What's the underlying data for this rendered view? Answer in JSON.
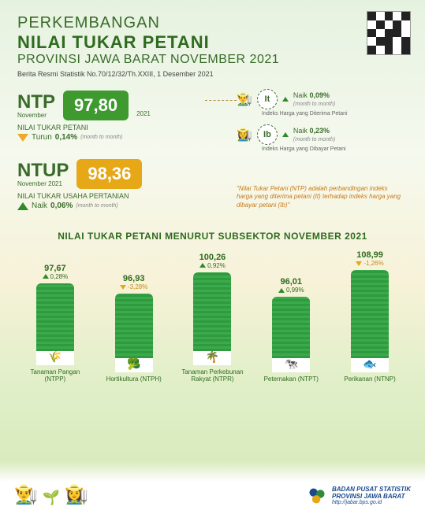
{
  "header": {
    "title_line1": "PERKEMBANGAN",
    "title_line2": "NILAI TUKAR PETANI",
    "title_line3": "PROVINSI JAWA BARAT NOVEMBER 2021",
    "subtitle": "Berita Resmi Statistik No.70/12/32/Th.XXIII, 1 Desember 2021"
  },
  "ntp": {
    "label": "NTP",
    "sublabel": "November",
    "value": "97,80",
    "year": "2021",
    "desc": "NILAI TUKAR PETANI",
    "direction": "down",
    "change_label": "Turun",
    "change_value": "0,14%",
    "mtm": "(month to month)",
    "badge_color": "#3e9a2f"
  },
  "indices": {
    "it": {
      "symbol": "It",
      "direction": "up",
      "change_label": "Naik",
      "change_value": "0,09%",
      "mtm": "(month to month)",
      "desc": "Indeks Harga yang Diterima Petani"
    },
    "ib": {
      "symbol": "Ib",
      "direction": "up",
      "change_label": "Naik",
      "change_value": "0,23%",
      "mtm": "(month to month)",
      "desc": "Indeks Harga yang Dibayar Petani"
    }
  },
  "ntup": {
    "label": "NTUP",
    "sublabel": "November 2021",
    "value": "98,36",
    "desc": "NILAI TUKAR USAHA PERTANIAN",
    "direction": "up",
    "change_label": "Naik",
    "change_value": "0,06%",
    "mtm": "(month to month)",
    "badge_color": "#e6a817"
  },
  "quote": "\"Nilai Tukar Petani (NTP) adalah perbandingan indeks harga yang diterima petani (It) terhadap indeks harga yang dibayar petani (Ib)\"",
  "subsector": {
    "title": "NILAI TUKAR PETANI MENURUT SUBSEKTOR NOVEMBER 2021",
    "bars": [
      {
        "value": "97,67",
        "change": "0,28%",
        "dir": "up",
        "height": 104,
        "icon": "🌾",
        "label": "Tanaman Pangan (NTPP)"
      },
      {
        "value": "96,93",
        "change": "-3,28%",
        "dir": "down",
        "height": 100,
        "icon": "🥦",
        "label": "Hortikultura (NTPH)"
      },
      {
        "value": "100,26",
        "change": "0,92%",
        "dir": "up",
        "height": 118,
        "icon": "🌴",
        "label": "Tanaman Perkebunan Rakyat (NTPR)"
      },
      {
        "value": "96,01",
        "change": "0,99%",
        "dir": "up",
        "height": 96,
        "icon": "🐄",
        "label": "Peternakan (NTPT)"
      },
      {
        "value": "108,99",
        "change": "-1,26%",
        "dir": "down",
        "height": 130,
        "icon": "🐟",
        "label": "Perikanan (NTNP)"
      }
    ],
    "bar_color": "#2f9a3f"
  },
  "footer": {
    "org_line1": "BADAN PUSAT STATISTIK",
    "org_line2": "PROVINSI JAWA BARAT",
    "url": "http://jabar.bps.go.id"
  }
}
